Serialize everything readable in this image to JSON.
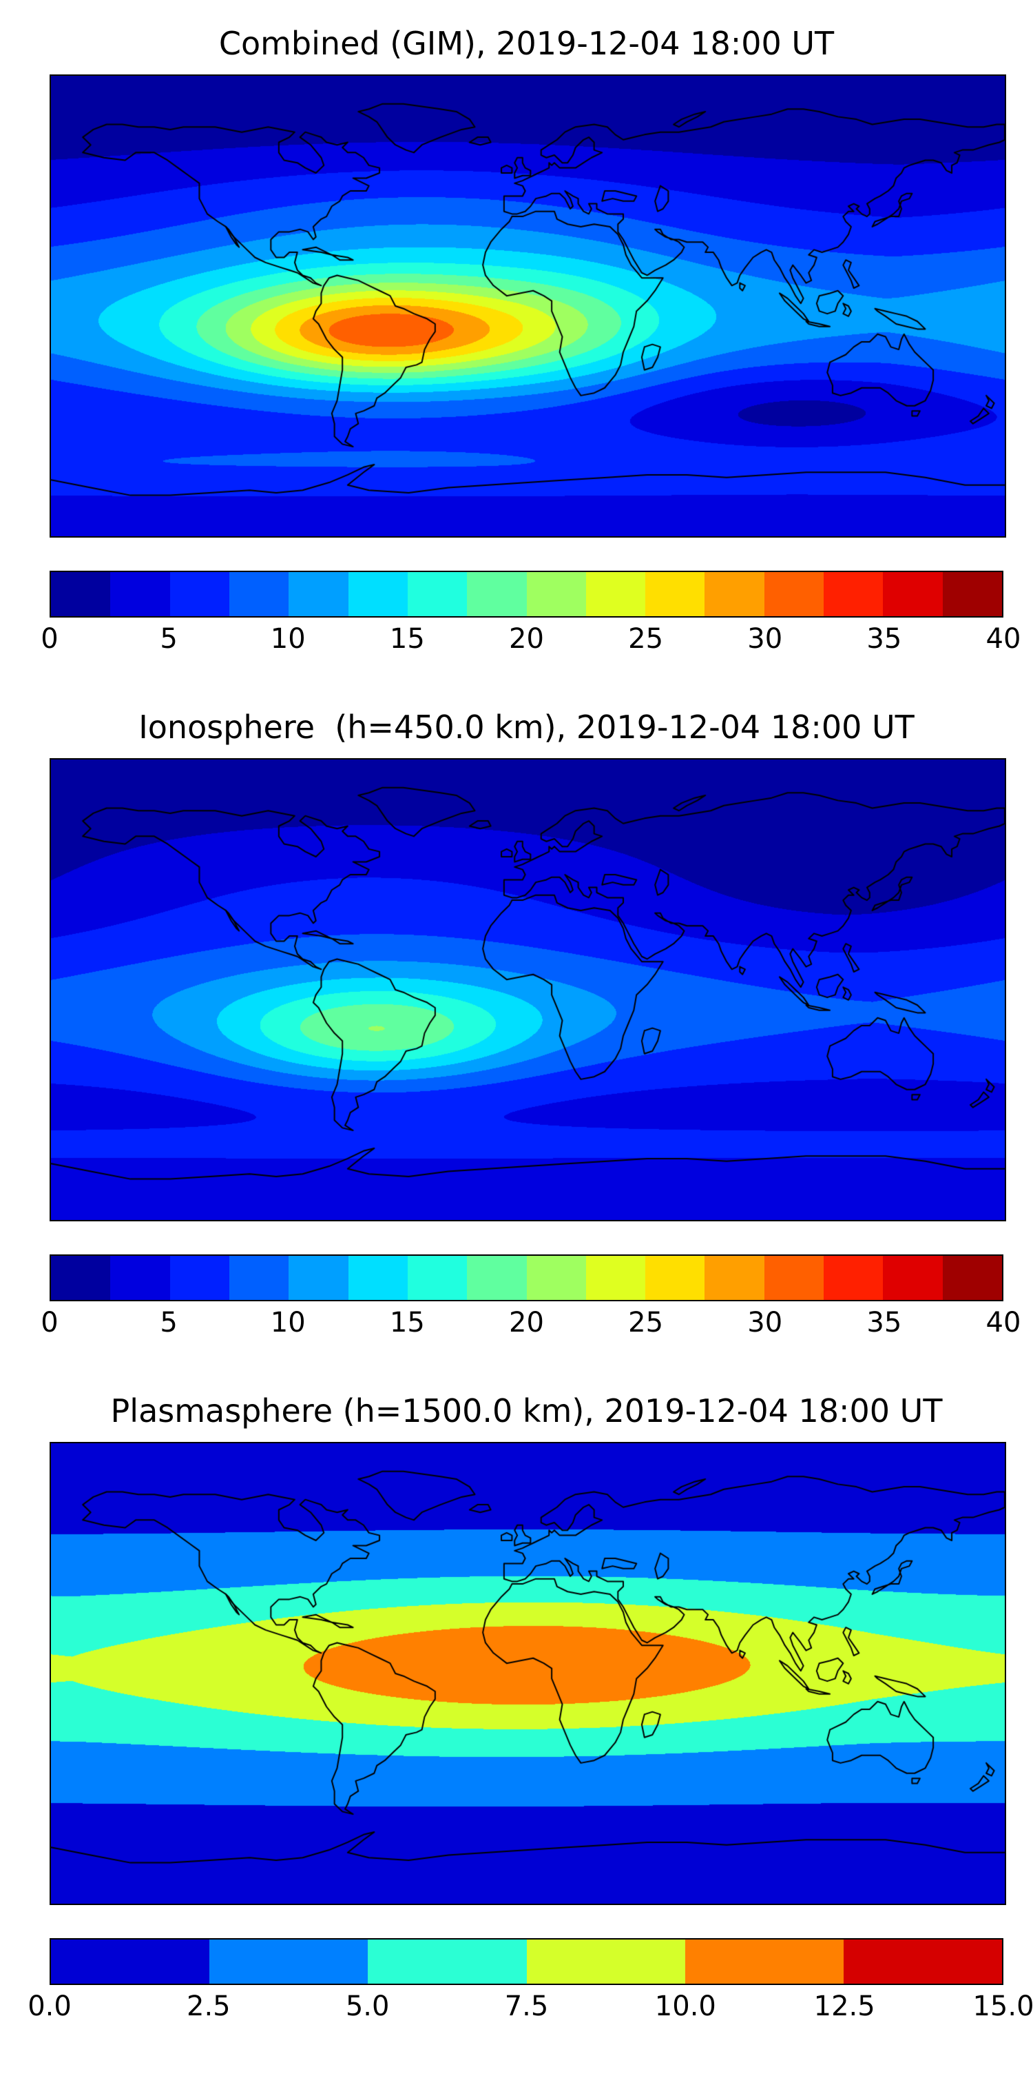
{
  "figure": {
    "background": "#ffffff",
    "text_color": "#000000",
    "coastline_color": "#000000"
  },
  "chart_data": [
    {
      "type": "heatmap",
      "title": "Combined (GIM), 2019-12-04 18:00 UT",
      "projection": "equirectangular",
      "lon_range": [
        -180,
        180
      ],
      "lat_range": [
        -90,
        90
      ],
      "colormap": "jet",
      "levels": {
        "min": 0,
        "max": 40,
        "step": 2.5
      },
      "colorbar_ticks": [
        {
          "value": 0,
          "label": "0"
        },
        {
          "value": 5,
          "label": "5"
        },
        {
          "value": 10,
          "label": "10"
        },
        {
          "value": 15,
          "label": "15"
        },
        {
          "value": 20,
          "label": "20"
        },
        {
          "value": 25,
          "label": "25"
        },
        {
          "value": 30,
          "label": "30"
        },
        {
          "value": 35,
          "label": "35"
        },
        {
          "value": 40,
          "label": "40"
        }
      ],
      "peak_value_estimate": 32,
      "peak_location": {
        "lon": -55,
        "lat": -11
      },
      "field": {
        "base": 3,
        "blobs": [
          {
            "lon": 0,
            "lat": -5,
            "sigma_lon": 10000,
            "sigma_lat": 24,
            "amp": 7
          },
          {
            "lon": -55,
            "lat": -11,
            "sigma_lon": 42,
            "sigma_lat": 13,
            "amp": 16
          },
          {
            "lon": -45,
            "lat": -8,
            "sigma_lon": 75,
            "sigma_lat": 20,
            "amp": 6
          },
          {
            "lon": 15,
            "lat": -8,
            "sigma_lon": 28,
            "sigma_lat": 16,
            "amp": 3
          },
          {
            "lon": -40,
            "lat": 32,
            "sigma_lon": 75,
            "sigma_lat": 20,
            "amp": 4
          },
          {
            "lon": 100,
            "lat": -40,
            "sigma_lon": 45,
            "sigma_lat": 13,
            "amp": -4
          },
          {
            "lon": 0,
            "lat": 78,
            "sigma_lon": 10000,
            "sigma_lat": 16,
            "amp": -2.5
          },
          {
            "lon": 0,
            "lat": -62,
            "sigma_lon": 10000,
            "sigma_lat": 10,
            "amp": 4
          }
        ]
      }
    },
    {
      "type": "heatmap",
      "title": "Ionosphere  (h=450.0 km), 2019-12-04 18:00 UT",
      "projection": "equirectangular",
      "lon_range": [
        -180,
        180
      ],
      "lat_range": [
        -90,
        90
      ],
      "colormap": "jet",
      "levels": {
        "min": 0,
        "max": 40,
        "step": 2.5
      },
      "colorbar_ticks": [
        {
          "value": 0,
          "label": "0"
        },
        {
          "value": 5,
          "label": "5"
        },
        {
          "value": 10,
          "label": "10"
        },
        {
          "value": 15,
          "label": "15"
        },
        {
          "value": 20,
          "label": "20"
        },
        {
          "value": 25,
          "label": "25"
        },
        {
          "value": 30,
          "label": "30"
        },
        {
          "value": 35,
          "label": "35"
        },
        {
          "value": 40,
          "label": "40"
        }
      ],
      "peak_value_estimate": 20.5,
      "peak_location": {
        "lon": -58,
        "lat": -18
      },
      "field": {
        "base": 2.5,
        "blobs": [
          {
            "lon": 0,
            "lat": -8,
            "sigma_lon": 10000,
            "sigma_lat": 22,
            "amp": 5
          },
          {
            "lon": -58,
            "lat": -18,
            "sigma_lon": 38,
            "sigma_lat": 13,
            "amp": 9
          },
          {
            "lon": -50,
            "lat": -10,
            "sigma_lon": 70,
            "sigma_lat": 18,
            "amp": 4
          },
          {
            "lon": -60,
            "lat": 35,
            "sigma_lon": 80,
            "sigma_lat": 22,
            "amp": 2.5
          },
          {
            "lon": 120,
            "lat": 45,
            "sigma_lon": 55,
            "sigma_lat": 22,
            "amp": -1.8
          },
          {
            "lon": 0,
            "lat": 78,
            "sigma_lon": 10000,
            "sigma_lat": 16,
            "amp": -1.5
          },
          {
            "lon": 0,
            "lat": -62,
            "sigma_lon": 10000,
            "sigma_lat": 10,
            "amp": 2.5
          }
        ]
      }
    },
    {
      "type": "heatmap",
      "title": "Plasmasphere (h=1500.0 km), 2019-12-04 18:00 UT",
      "projection": "equirectangular",
      "lon_range": [
        -180,
        180
      ],
      "lat_range": [
        -90,
        90
      ],
      "colormap": "jet",
      "levels": {
        "min": 0,
        "max": 15,
        "step": 2.5
      },
      "colorbar_ticks": [
        {
          "value": 0,
          "label": "0.0"
        },
        {
          "value": 2.5,
          "label": "2.5"
        },
        {
          "value": 5,
          "label": "5.0"
        },
        {
          "value": 7.5,
          "label": "7.5"
        },
        {
          "value": 10,
          "label": "10.0"
        },
        {
          "value": 12.5,
          "label": "12.5"
        },
        {
          "value": 15,
          "label": "15.0"
        }
      ],
      "peak_value_estimate": 12,
      "peak_location": {
        "lon": 8,
        "lat": 4
      },
      "field": {
        "base": 0.9,
        "blobs": [
          {
            "lon": 0,
            "lat": 2,
            "sigma_lon": 10000,
            "sigma_lat": 24,
            "amp": 3.2
          },
          {
            "lon": 0,
            "lat": 2,
            "sigma_lon": 10000,
            "sigma_lat": 42,
            "amp": 2.8
          },
          {
            "lon": 8,
            "lat": 5,
            "sigma_lon": 78,
            "sigma_lat": 19,
            "amp": 4.5
          },
          {
            "lon": -50,
            "lat": -3,
            "sigma_lon": 90,
            "sigma_lat": 22,
            "amp": 1.0
          }
        ]
      }
    }
  ]
}
